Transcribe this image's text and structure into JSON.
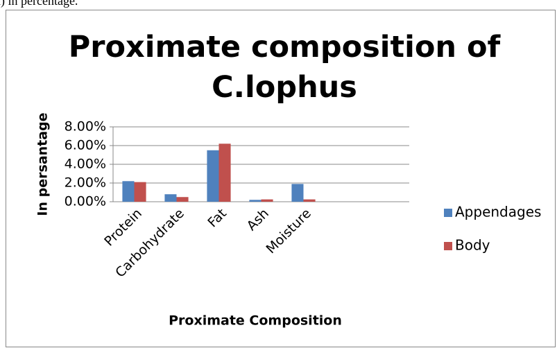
{
  "caption": "n) in percentage.",
  "chart_data": {
    "type": "bar",
    "title": "Proximate composition of C.lophus",
    "x_label": "Proximate Composition",
    "y_label": "In persantage",
    "categories": [
      "Protein",
      "Carbohydrate",
      "Fat",
      "Ash",
      "Moisture",
      null,
      null
    ],
    "series": [
      {
        "name": "Appendages",
        "color": "#4f81bd",
        "values": [
          2.2,
          0.8,
          5.5,
          0.2,
          1.9,
          null,
          null
        ]
      },
      {
        "name": "Body",
        "color": "#c0504d",
        "values": [
          2.1,
          0.5,
          6.2,
          0.25,
          0.25,
          null,
          null
        ]
      }
    ],
    "ylim": [
      0,
      8
    ],
    "yticks": [
      {
        "value": 0,
        "label": "0.00%"
      },
      {
        "value": 2,
        "label": "2.00%"
      },
      {
        "value": 4,
        "label": "4.00%"
      },
      {
        "value": 6,
        "label": "6.00%"
      },
      {
        "value": 8,
        "label": "8.00%"
      }
    ],
    "grid": true,
    "legend": "right"
  }
}
